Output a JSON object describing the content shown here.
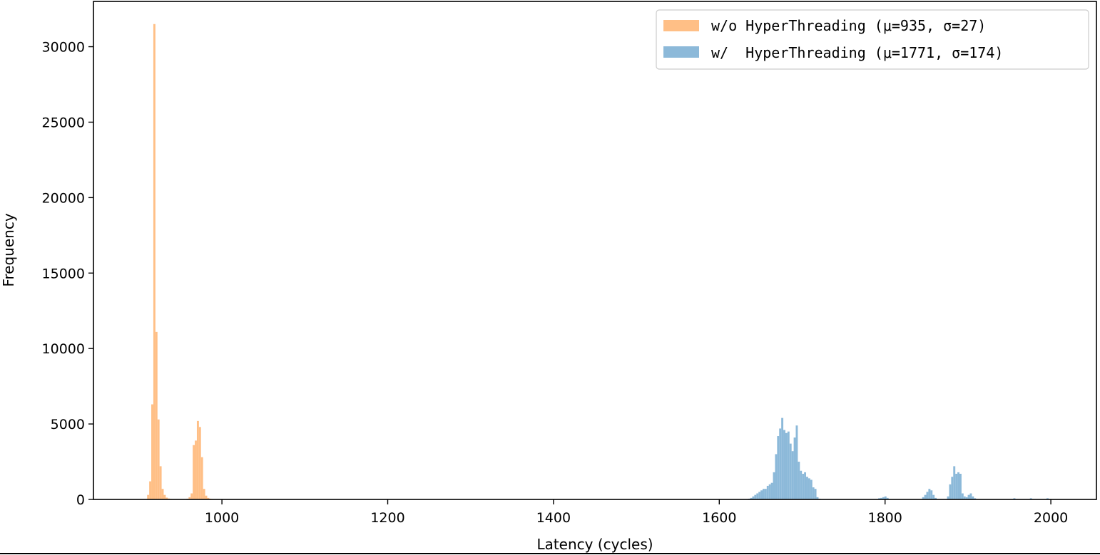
{
  "chart_data": {
    "type": "bar",
    "title": "",
    "xlabel": "Latency (cycles)",
    "ylabel": "Frequency",
    "xlim": [
      845,
      2055
    ],
    "ylim": [
      0,
      33000
    ],
    "xticks": [
      1000,
      1200,
      1400,
      1600,
      1800,
      2000
    ],
    "yticks": [
      0,
      5000,
      10000,
      15000,
      20000,
      25000,
      30000
    ],
    "legend_position": "top-right",
    "bin_width": 2.5,
    "series": [
      {
        "name": "w/o HyperThreading (μ=935, σ=27)",
        "color": "#ffbf86",
        "x": [
          911,
          913.5,
          916,
          918.5,
          921,
          923.5,
          926,
          928.5,
          931,
          933.5,
          936,
          938.5,
          941,
          943.5,
          946,
          948.5,
          951,
          953.5,
          956,
          958.5,
          961,
          963.5,
          966,
          968.5,
          971,
          973.5,
          976,
          978.5,
          981,
          983.5,
          986,
          988.5,
          991,
          993.5,
          996
        ],
        "values": [
          300,
          1200,
          6300,
          31500,
          11100,
          5300,
          2200,
          700,
          300,
          120,
          60,
          30,
          20,
          15,
          10,
          10,
          10,
          15,
          20,
          50,
          150,
          400,
          3600,
          3900,
          5200,
          4800,
          2800,
          700,
          250,
          100,
          50,
          30,
          20,
          10,
          5
        ]
      },
      {
        "name": "w/  HyperThreading (μ=1771, σ=174)",
        "color": "#8cb9d9",
        "x": [
          1636,
          1638.5,
          1641,
          1643.5,
          1646,
          1648.5,
          1651,
          1653.5,
          1656,
          1658.5,
          1661,
          1663.5,
          1666,
          1668.5,
          1671,
          1673.5,
          1676,
          1678.5,
          1681,
          1683.5,
          1686,
          1688.5,
          1691,
          1693.5,
          1696,
          1698.5,
          1701,
          1703.5,
          1706,
          1708.5,
          1711,
          1713.5,
          1716,
          1718.5,
          1721,
          1793,
          1795.5,
          1798,
          1800.5,
          1803,
          1846,
          1848.5,
          1851,
          1853.5,
          1856,
          1858.5,
          1861,
          1876,
          1878.5,
          1881,
          1883.5,
          1886,
          1888.5,
          1891,
          1893.5,
          1896,
          1898.5,
          1901,
          1903.5,
          1906,
          1908.5,
          1956,
          1976,
          1996
        ],
        "values": [
          50,
          100,
          200,
          300,
          400,
          500,
          600,
          700,
          700,
          900,
          1000,
          1100,
          1800,
          3000,
          4200,
          4700,
          5400,
          4600,
          4400,
          4500,
          3700,
          3200,
          4100,
          4900,
          2500,
          1900,
          1700,
          1800,
          1500,
          1400,
          1300,
          800,
          700,
          150,
          50,
          80,
          100,
          150,
          200,
          100,
          150,
          300,
          500,
          700,
          600,
          300,
          100,
          200,
          1000,
          1500,
          2200,
          1700,
          1800,
          1700,
          400,
          200,
          150,
          300,
          400,
          200,
          80,
          80,
          80,
          80
        ]
      }
    ]
  }
}
